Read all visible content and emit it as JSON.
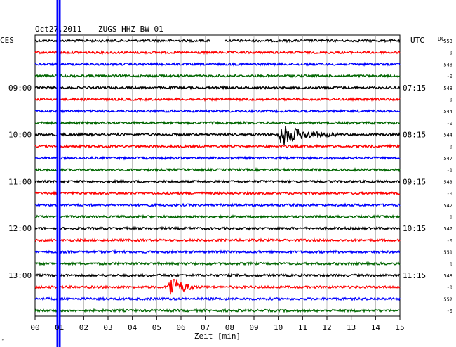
{
  "header": {
    "date": "Oct27,2011",
    "station": "ZUGS HHZ BW 01",
    "left_tz": "CES",
    "right_tz": "UTC",
    "dc_label": "DC"
  },
  "xaxis": {
    "label": "Zeit [min]",
    "ticks": [
      "00",
      "01",
      "02",
      "03",
      "04",
      "05",
      "06",
      "07",
      "08",
      "09",
      "10",
      "11",
      "12",
      "13",
      "14",
      "15"
    ]
  },
  "left_times": [
    "09:00",
    "10:00",
    "11:00",
    "12:00",
    "13:00"
  ],
  "right_times": [
    "07:15",
    "08:15",
    "09:15",
    "10:15",
    "11:15"
  ],
  "dc_values": [
    "553",
    "-0",
    "548",
    "-0",
    "548",
    "-0",
    "544",
    "-0",
    "544",
    "0",
    "547",
    "-1",
    "543",
    "-0",
    "542",
    "0",
    "547",
    "-0",
    "551",
    "0",
    "548",
    "-0",
    "552",
    "-0"
  ],
  "colors": {
    "trace_cycle": [
      "#000000",
      "#ff0000",
      "#0000ff",
      "#006600"
    ],
    "marker": "#0000ff",
    "grid": "#000000"
  },
  "chart_data": {
    "type": "line",
    "description_free": true,
    "x_range_min": [
      0,
      15
    ],
    "trace_count": 24,
    "minutes_per_trace": 15,
    "events": [
      {
        "trace_index": 8,
        "start_min": 10.0,
        "peak_amplitude": 3.0,
        "decay_min": 2.5
      },
      {
        "trace_index": 21,
        "start_min": 5.45,
        "peak_amplitude": 3.5,
        "decay_min": 1.2
      }
    ],
    "gap": {
      "trace_index": 0,
      "start_min": 7.2,
      "end_min": 7.8
    },
    "marker_min": [
      0.88,
      1.05
    ]
  }
}
